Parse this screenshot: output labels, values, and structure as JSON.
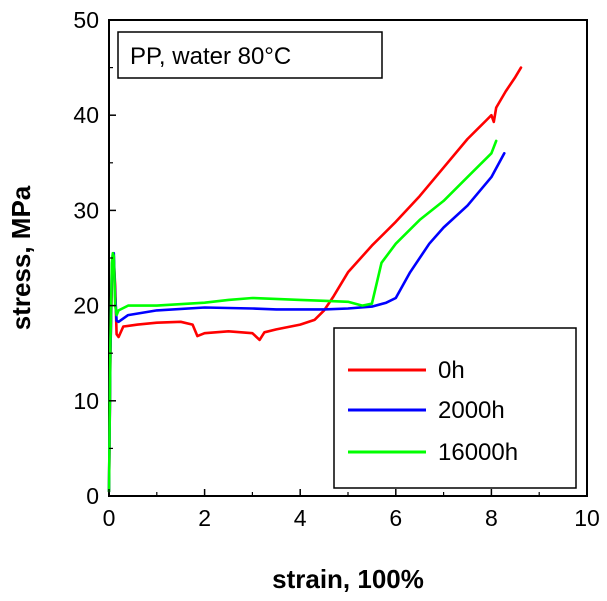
{
  "chart_data": {
    "type": "line",
    "title": "",
    "annotation": "PP, water 80°C",
    "xlabel": "strain, 100%",
    "ylabel": "stress, MPa",
    "xlim": [
      0,
      10
    ],
    "ylim": [
      0,
      50
    ],
    "xticks": [
      0,
      2,
      4,
      6,
      8,
      10
    ],
    "yticks": [
      0,
      10,
      20,
      30,
      40,
      50
    ],
    "grid": false,
    "legend_position": "bottom-right",
    "series": [
      {
        "name": "0h",
        "color": "#ff0000",
        "x": [
          0.0,
          0.03,
          0.06,
          0.08,
          0.1,
          0.13,
          0.16,
          0.2,
          0.3,
          0.6,
          1.0,
          1.5,
          1.75,
          1.85,
          2.0,
          2.5,
          3.0,
          3.15,
          3.25,
          3.5,
          4.0,
          4.3,
          4.5,
          4.7,
          5.0,
          5.5,
          6.0,
          6.5,
          7.0,
          7.5,
          7.9,
          8.0,
          8.05,
          8.1,
          8.3,
          8.5,
          8.62
        ],
        "y": [
          0.5,
          15.0,
          22.5,
          24.0,
          24.8,
          22.0,
          17.0,
          16.7,
          17.8,
          18.0,
          18.2,
          18.3,
          18.0,
          16.8,
          17.1,
          17.3,
          17.1,
          16.4,
          17.2,
          17.5,
          18.0,
          18.5,
          19.5,
          21.0,
          23.5,
          26.3,
          28.8,
          31.5,
          34.5,
          37.5,
          39.5,
          40.0,
          39.3,
          40.8,
          42.5,
          44.0,
          45.0
        ]
      },
      {
        "name": "2000h",
        "color": "#0000ff",
        "x": [
          0.0,
          0.03,
          0.06,
          0.08,
          0.1,
          0.13,
          0.16,
          0.2,
          0.4,
          1.0,
          2.0,
          3.0,
          3.5,
          4.0,
          4.5,
          5.0,
          5.5,
          5.8,
          6.0,
          6.3,
          6.7,
          7.0,
          7.5,
          8.0,
          8.27
        ],
        "y": [
          0.5,
          15.0,
          24.0,
          25.4,
          25.5,
          21.0,
          18.4,
          18.3,
          19.0,
          19.5,
          19.8,
          19.7,
          19.6,
          19.6,
          19.6,
          19.7,
          19.9,
          20.3,
          20.8,
          23.5,
          26.5,
          28.2,
          30.5,
          33.5,
          36.0
        ]
      },
      {
        "name": "16000h",
        "color": "#00ff00",
        "x": [
          0.0,
          0.03,
          0.06,
          0.08,
          0.1,
          0.13,
          0.16,
          0.2,
          0.4,
          1.0,
          2.0,
          2.5,
          3.0,
          4.0,
          4.5,
          5.0,
          5.3,
          5.5,
          5.7,
          6.0,
          6.5,
          7.0,
          7.5,
          8.0,
          8.1
        ],
        "y": [
          0.5,
          16.0,
          24.5,
          25.5,
          25.2,
          20.0,
          19.0,
          19.5,
          20.0,
          20.0,
          20.3,
          20.6,
          20.8,
          20.6,
          20.5,
          20.4,
          20.0,
          20.2,
          24.5,
          26.5,
          29.0,
          31.0,
          33.5,
          36.0,
          37.3
        ]
      }
    ]
  }
}
